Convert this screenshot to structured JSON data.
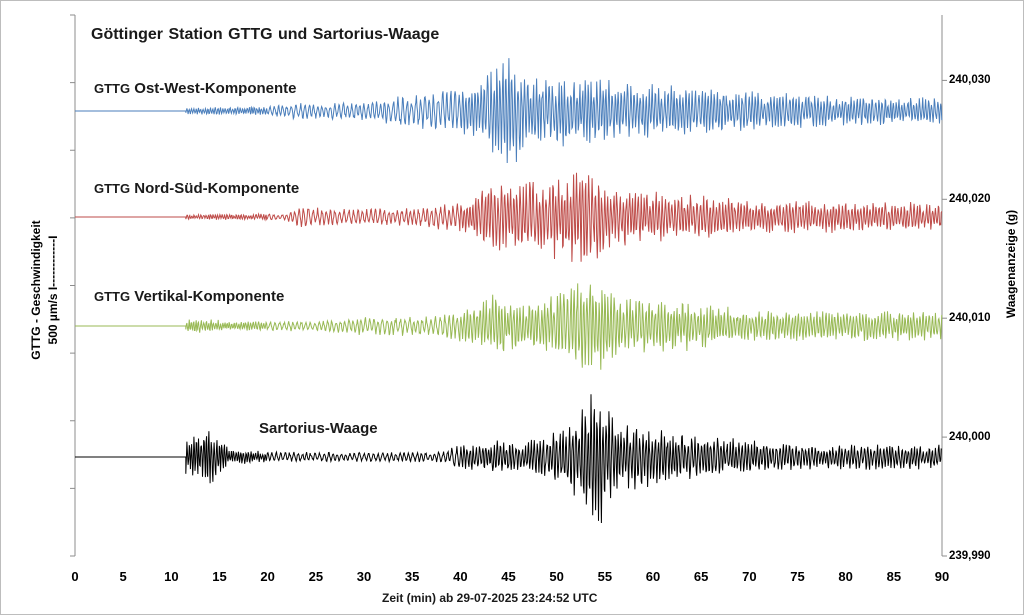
{
  "chart_data": {
    "type": "line",
    "title": "Göttinger Station GTTG   und   Sartorius-Waage",
    "xlabel": "Zeit (min) ab 29-07-2025  23:24:52 UTC",
    "ylabel_left": "GTTG - Geschwindigkeit",
    "ylabel_left_scale": "500 µm/s  I------------I",
    "ylabel_right": "Waagenanzeige (g)",
    "xlim": [
      0,
      90
    ],
    "xticks": [
      "0",
      "5",
      "10",
      "15",
      "20",
      "25",
      "30",
      "35",
      "40",
      "45",
      "50",
      "55",
      "60",
      "65",
      "70",
      "75",
      "80",
      "85",
      "90"
    ],
    "yticks_right": [
      "240,030",
      "240,020",
      "240,010",
      "240,000",
      "239,990"
    ],
    "ylim_right": [
      239.99,
      240.0355
    ],
    "grid": false,
    "series": [
      {
        "name": "GTTG Ost-West-Komponente",
        "label_prefix": "GTTG",
        "label_main": "Ost-West-Komponente",
        "color": "#4a7ebb",
        "onset_min": 11.5,
        "envelope_um_s": [
          [
            11.5,
            25
          ],
          [
            20,
            35
          ],
          [
            22,
            60
          ],
          [
            30,
            70
          ],
          [
            34,
            120
          ],
          [
            38,
            160
          ],
          [
            42,
            200
          ],
          [
            44,
            420
          ],
          [
            45,
            460
          ],
          [
            47,
            300
          ],
          [
            50,
            260
          ],
          [
            54,
            280
          ],
          [
            56,
            240
          ],
          [
            60,
            210
          ],
          [
            65,
            180
          ],
          [
            70,
            150
          ],
          [
            75,
            130
          ],
          [
            80,
            110
          ],
          [
            90,
            100
          ]
        ]
      },
      {
        "name": "GTTG Nord-Süd-Komponente",
        "label_prefix": "GTTG",
        "label_main": "Nord-Süd-Komponente",
        "color": "#be4b48",
        "onset_min": 11.5,
        "envelope_um_s": [
          [
            11.5,
            20
          ],
          [
            22,
            25
          ],
          [
            23,
            80
          ],
          [
            27,
            60
          ],
          [
            35,
            70
          ],
          [
            40,
            110
          ],
          [
            43,
            250
          ],
          [
            48,
            300
          ],
          [
            51,
            330
          ],
          [
            53,
            420
          ],
          [
            55,
            250
          ],
          [
            60,
            200
          ],
          [
            65,
            170
          ],
          [
            70,
            130
          ],
          [
            80,
            120
          ],
          [
            90,
            110
          ]
        ]
      },
      {
        "name": "GTTG Vertikal-Komponente",
        "label_prefix": "GTTG",
        "label_main": "Vertikal-Komponente",
        "color": "#98b954",
        "onset_min": 11.5,
        "envelope_um_s": [
          [
            11.5,
            50
          ],
          [
            14,
            55
          ],
          [
            16,
            35
          ],
          [
            26,
            40
          ],
          [
            30,
            70
          ],
          [
            38,
            80
          ],
          [
            41,
            150
          ],
          [
            43,
            250
          ],
          [
            46,
            170
          ],
          [
            49,
            200
          ],
          [
            52,
            420
          ],
          [
            54,
            390
          ],
          [
            56,
            260
          ],
          [
            60,
            220
          ],
          [
            65,
            180
          ],
          [
            70,
            120
          ],
          [
            80,
            110
          ],
          [
            90,
            120
          ]
        ]
      },
      {
        "name": "Sartorius-Waage",
        "label_prefix": "",
        "label_main": "Sartorius-Waage",
        "color": "#000000",
        "onset_min": 11.5,
        "envelope_um_s": [
          [
            11.5,
            130
          ],
          [
            13,
            180
          ],
          [
            14,
            220
          ],
          [
            15,
            150
          ],
          [
            16,
            60
          ],
          [
            20,
            40
          ],
          [
            30,
            35
          ],
          [
            38,
            40
          ],
          [
            40,
            90
          ],
          [
            44,
            130
          ],
          [
            47,
            120
          ],
          [
            50,
            220
          ],
          [
            52,
            320
          ],
          [
            54,
            600
          ],
          [
            56,
            280
          ],
          [
            60,
            230
          ],
          [
            65,
            160
          ],
          [
            70,
            130
          ],
          [
            75,
            110
          ],
          [
            80,
            100
          ],
          [
            90,
            100
          ]
        ]
      }
    ]
  }
}
